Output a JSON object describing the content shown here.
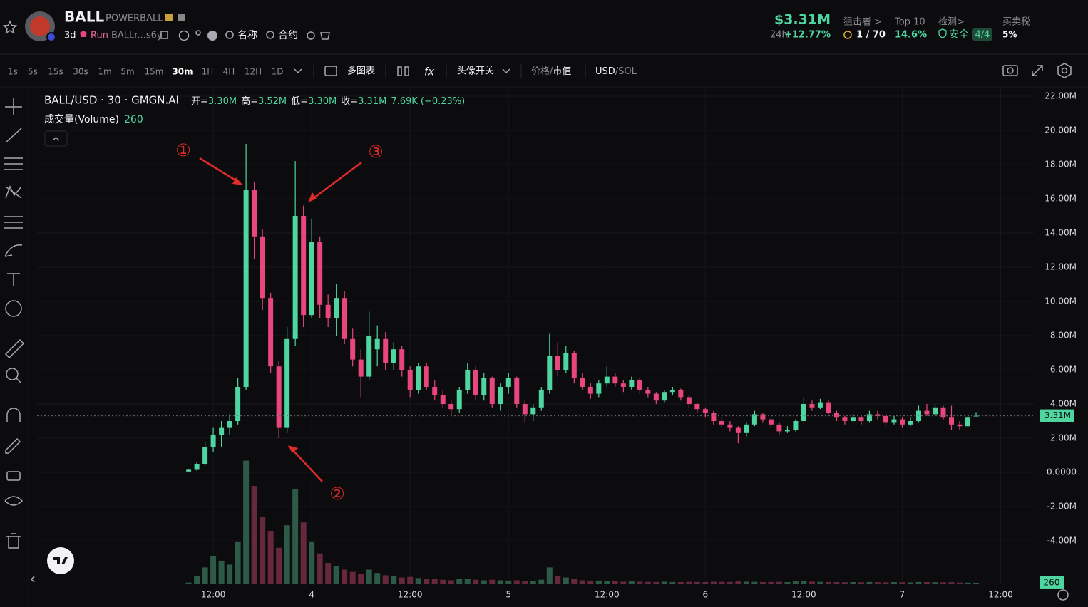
{
  "header": {
    "symbol": "BALL",
    "name": "POWERBALL",
    "age": "3d",
    "run": "Run",
    "address": "BALLr...s6y",
    "search_name": "名称",
    "search_contract": "合约",
    "market_cap": "$3.31M",
    "change_period": "24h",
    "change": "+12.77%",
    "stats": [
      {
        "label": "狙击者 >",
        "value": "1 / 70"
      },
      {
        "label": "Top 10",
        "value": "14.6%"
      },
      {
        "label": "检测>",
        "value": "安全",
        "badge": "4/4"
      },
      {
        "label": "买卖税",
        "value": "5%"
      }
    ]
  },
  "toolbar": {
    "timeframes": [
      "1s",
      "5s",
      "15s",
      "30s",
      "1m",
      "5m",
      "15m",
      "30m",
      "1H",
      "4H",
      "12H",
      "1D"
    ],
    "selected_index": 7,
    "multi_chart": "多图表",
    "avatar_toggle": "头像开关",
    "price": "价格",
    "separator": "/",
    "market_value": "市值",
    "usd": "USD",
    "sol": "SOL"
  },
  "chart_data": {
    "type": "candlestick",
    "title": "BALL/USD · 30 · GMGN.AI",
    "ohlc": [
      {
        "label": "开=",
        "value": "3.30M"
      },
      {
        "label": "高=",
        "value": "3.52M"
      },
      {
        "label": "低=",
        "value": "3.30M"
      },
      {
        "label": "收=",
        "value": "3.31M"
      }
    ],
    "change": "7.69K (+0.23%)",
    "volume_legend": {
      "name": "成交量(Volume)",
      "value": 260
    },
    "up_color": "#4fd6a0",
    "down_color": "#e8467c",
    "volume_up_color": "#2c5a46",
    "volume_down_color": "#66283c",
    "candles": [
      [
        0.05,
        0.2,
        0.0,
        0.15
      ],
      [
        0.15,
        0.6,
        0.1,
        0.5
      ],
      [
        0.5,
        1.8,
        0.4,
        1.5
      ],
      [
        1.5,
        2.6,
        1.2,
        2.2
      ],
      [
        2.2,
        3.0,
        1.5,
        2.6
      ],
      [
        2.6,
        3.4,
        2.2,
        3.0
      ],
      [
        3.0,
        5.5,
        2.8,
        5.0
      ],
      [
        5.0,
        19.2,
        4.8,
        16.5
      ],
      [
        16.5,
        17.0,
        12.5,
        13.8
      ],
      [
        13.8,
        14.2,
        9.5,
        10.2
      ],
      [
        10.2,
        10.5,
        5.8,
        6.2
      ],
      [
        6.2,
        6.5,
        2.0,
        2.6
      ],
      [
        2.6,
        8.5,
        2.3,
        7.8
      ],
      [
        7.8,
        18.2,
        7.4,
        15.0
      ],
      [
        15.0,
        15.6,
        8.5,
        9.2
      ],
      [
        9.2,
        14.8,
        9.0,
        13.5
      ],
      [
        13.5,
        13.8,
        9.0,
        9.8
      ],
      [
        9.8,
        10.4,
        8.5,
        9.0
      ],
      [
        9.0,
        11.0,
        8.0,
        10.2
      ],
      [
        10.2,
        10.6,
        7.5,
        7.8
      ],
      [
        7.8,
        8.4,
        6.2,
        6.6
      ],
      [
        6.6,
        7.2,
        4.4,
        5.6
      ],
      [
        5.6,
        9.4,
        5.4,
        8.0
      ],
      [
        7.2,
        8.6,
        6.2,
        7.8
      ],
      [
        7.8,
        8.2,
        6.0,
        6.4
      ],
      [
        6.4,
        7.6,
        6.0,
        7.2
      ],
      [
        7.2,
        7.4,
        5.6,
        6.0
      ],
      [
        6.0,
        6.2,
        4.4,
        4.8
      ],
      [
        4.8,
        6.4,
        4.6,
        6.2
      ],
      [
        6.2,
        6.4,
        4.8,
        5.0
      ],
      [
        5.0,
        5.4,
        4.2,
        4.5
      ],
      [
        4.5,
        4.8,
        3.8,
        4.0
      ],
      [
        4.0,
        4.2,
        3.3,
        3.7
      ],
      [
        3.7,
        5.0,
        3.5,
        4.8
      ],
      [
        4.8,
        6.4,
        4.6,
        6.0
      ],
      [
        6.0,
        6.2,
        4.2,
        4.5
      ],
      [
        4.5,
        5.8,
        4.2,
        5.5
      ],
      [
        5.5,
        5.6,
        3.8,
        4.0
      ],
      [
        4.0,
        5.2,
        3.6,
        5.0
      ],
      [
        5.0,
        5.8,
        4.6,
        5.5
      ],
      [
        5.5,
        5.6,
        3.8,
        4.0
      ],
      [
        4.0,
        4.2,
        2.9,
        3.4
      ],
      [
        3.4,
        4.0,
        3.0,
        3.8
      ],
      [
        3.8,
        5.0,
        3.6,
        4.8
      ],
      [
        4.8,
        8.1,
        4.6,
        6.8
      ],
      [
        6.8,
        7.6,
        5.6,
        6.0
      ],
      [
        6.0,
        7.4,
        5.8,
        7.0
      ],
      [
        7.0,
        7.1,
        5.2,
        5.5
      ],
      [
        5.5,
        5.8,
        4.8,
        5.0
      ],
      [
        5.0,
        5.2,
        4.3,
        4.6
      ],
      [
        4.6,
        5.4,
        4.4,
        5.2
      ],
      [
        5.2,
        6.2,
        5.0,
        5.6
      ],
      [
        5.6,
        5.8,
        5.0,
        5.2
      ],
      [
        5.2,
        5.4,
        4.7,
        5.0
      ],
      [
        5.0,
        5.6,
        4.8,
        5.4
      ],
      [
        5.4,
        5.5,
        4.6,
        4.8
      ],
      [
        4.8,
        5.0,
        4.4,
        4.6
      ],
      [
        4.6,
        4.7,
        4.0,
        4.2
      ],
      [
        4.2,
        4.8,
        4.1,
        4.7
      ],
      [
        4.7,
        5.0,
        4.5,
        4.8
      ],
      [
        4.8,
        4.9,
        4.2,
        4.4
      ],
      [
        4.4,
        4.5,
        3.8,
        4.0
      ],
      [
        4.0,
        4.1,
        3.5,
        3.7
      ],
      [
        3.7,
        3.8,
        3.2,
        3.5
      ],
      [
        3.5,
        3.6,
        2.8,
        3.0
      ],
      [
        3.0,
        3.2,
        2.6,
        2.8
      ],
      [
        2.8,
        3.0,
        2.4,
        2.6
      ],
      [
        2.6,
        2.7,
        1.7,
        2.3
      ],
      [
        2.3,
        2.9,
        2.1,
        2.8
      ],
      [
        2.8,
        3.6,
        2.7,
        3.4
      ],
      [
        3.4,
        3.5,
        2.9,
        3.1
      ],
      [
        3.1,
        3.2,
        2.6,
        2.8
      ],
      [
        2.8,
        2.9,
        2.2,
        2.4
      ],
      [
        2.4,
        2.7,
        2.3,
        2.5
      ],
      [
        2.5,
        3.1,
        2.4,
        3.0
      ],
      [
        3.0,
        4.4,
        2.9,
        4.0
      ],
      [
        4.0,
        4.2,
        3.6,
        3.8
      ],
      [
        3.8,
        4.3,
        3.7,
        4.1
      ],
      [
        4.1,
        4.2,
        3.4,
        3.5
      ],
      [
        3.5,
        3.6,
        3.0,
        3.2
      ],
      [
        3.2,
        3.3,
        2.8,
        3.0
      ],
      [
        3.0,
        3.4,
        2.9,
        3.2
      ],
      [
        3.2,
        3.3,
        2.8,
        3.0
      ],
      [
        3.0,
        3.6,
        2.9,
        3.4
      ],
      [
        3.4,
        3.6,
        3.1,
        3.3
      ],
      [
        3.3,
        3.4,
        2.7,
        2.9
      ],
      [
        2.9,
        3.3,
        2.8,
        3.1
      ],
      [
        3.1,
        3.2,
        2.6,
        2.8
      ],
      [
        2.8,
        3.2,
        2.7,
        3.0
      ],
      [
        3.0,
        3.9,
        2.9,
        3.6
      ],
      [
        3.6,
        4.0,
        3.3,
        3.4
      ],
      [
        3.4,
        4.0,
        3.3,
        3.8
      ],
      [
        3.8,
        3.9,
        3.1,
        3.2
      ],
      [
        3.2,
        3.9,
        2.5,
        2.8
      ],
      [
        2.8,
        3.0,
        2.5,
        2.7
      ],
      [
        2.7,
        3.3,
        2.6,
        3.2
      ],
      [
        3.3,
        3.52,
        3.3,
        3.31
      ]
    ],
    "volumes": [
      300,
      1500,
      3000,
      5000,
      4200,
      3500,
      7500,
      22000,
      17500,
      12000,
      9500,
      6500,
      10500,
      17000,
      11000,
      7500,
      5500,
      3800,
      3200,
      2600,
      2200,
      1800,
      2600,
      2000,
      1600,
      1400,
      1200,
      1300,
      1100,
      1000,
      900,
      800,
      700,
      900,
      1000,
      800,
      700,
      800,
      700,
      650,
      700,
      600,
      550,
      800,
      3000,
      1500,
      1200,
      900,
      700,
      600,
      650,
      600,
      500,
      450,
      500,
      450,
      420,
      400,
      450,
      400,
      380,
      420,
      400,
      380,
      450,
      420,
      400,
      500,
      450,
      420,
      380,
      400,
      420,
      380,
      500,
      600,
      450,
      420,
      400,
      380,
      360,
      380,
      350,
      400,
      360,
      340,
      380,
      350,
      330,
      400,
      380,
      360,
      340,
      360,
      300,
      280,
      260
    ],
    "volume_ylim": [
      0,
      26000
    ],
    "xlim": [
      -18.48,
      103.04
    ],
    "xticks": [
      {
        "value": 3,
        "label": "12:00"
      },
      {
        "value": 15,
        "label": "4"
      },
      {
        "value": 27,
        "label": "12:00"
      },
      {
        "value": 39,
        "label": "5"
      },
      {
        "value": 51,
        "label": "12:00"
      },
      {
        "value": 63,
        "label": "6"
      },
      {
        "value": 75,
        "label": "12:00"
      },
      {
        "value": 87,
        "label": "7"
      },
      {
        "value": 99,
        "label": "12:00"
      }
    ],
    "ylim": [
      -6.54,
      22.54
    ],
    "yticks": [
      {
        "value": 22,
        "label": "22.00M"
      },
      {
        "value": 20,
        "label": "20.00M"
      },
      {
        "value": 18,
        "label": "18.00M"
      },
      {
        "value": 16,
        "label": "16.00M"
      },
      {
        "value": 14,
        "label": "14.00M"
      },
      {
        "value": 12,
        "label": "12.00M"
      },
      {
        "value": 10,
        "label": "10.00M"
      },
      {
        "value": 8,
        "label": "8.00M"
      },
      {
        "value": 6,
        "label": "6.00M"
      },
      {
        "value": 4,
        "label": "4.00M"
      },
      {
        "value": 2,
        "label": "2.00M"
      },
      {
        "value": 0,
        "label": "0.0000"
      },
      {
        "value": -2,
        "label": "-2.00M"
      },
      {
        "value": -4,
        "label": "-4.00M"
      }
    ],
    "grid": true,
    "price_line": {
      "value": 3.31,
      "label": "3.31M"
    },
    "annotations": [
      "①",
      "②",
      "③"
    ]
  }
}
